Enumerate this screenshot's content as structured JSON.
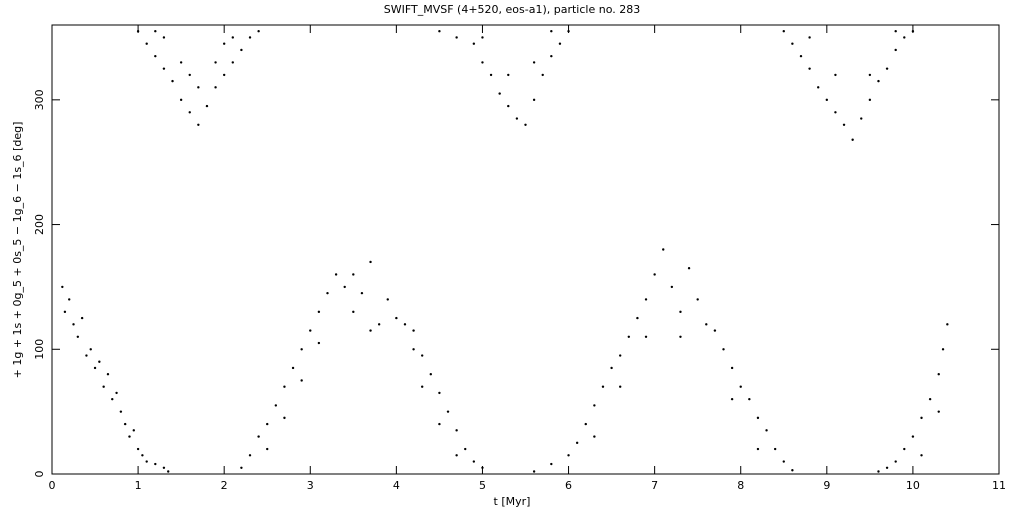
{
  "chart_data": {
    "type": "scatter",
    "title": "SWIFT_MVSF (4+520, eos-a1), particle no. 283",
    "x_label": "t [Myr]",
    "y_label": "+ 1g + 1s + 0g_5 + 0s_5 − 1g_6 − 1s_6 [deg]",
    "color": "#000000",
    "xlim": [
      0,
      11
    ],
    "ylim": [
      0,
      360
    ],
    "xticks": [
      0,
      1,
      2,
      3,
      4,
      5,
      6,
      7,
      8,
      9,
      10,
      11
    ],
    "yticks": [
      0,
      100,
      200,
      300
    ],
    "x": [
      0.12,
      0.15,
      0.2,
      0.25,
      0.3,
      0.35,
      0.4,
      0.45,
      0.5,
      0.55,
      0.6,
      0.65,
      0.7,
      0.75,
      0.8,
      0.85,
      0.9,
      0.95,
      1.0,
      1.05,
      1.1,
      1.2,
      1.3,
      1.35,
      1.0,
      1.1,
      1.2,
      1.3,
      1.4,
      1.5,
      1.6,
      1.7,
      1.8,
      1.9,
      2.0,
      2.1,
      2.2,
      2.3,
      2.4,
      1.3,
      1.5,
      1.7,
      1.9,
      2.1,
      1.2,
      1.6,
      2.0,
      2.2,
      2.3,
      2.4,
      2.5,
      2.6,
      2.7,
      2.8,
      2.9,
      3.0,
      3.1,
      3.2,
      3.3,
      2.5,
      2.7,
      2.9,
      3.1,
      3.4,
      3.5,
      3.6,
      3.7,
      3.8,
      3.9,
      4.0,
      3.5,
      3.7,
      4.1,
      4.2,
      4.3,
      4.4,
      4.5,
      4.6,
      4.7,
      4.8,
      4.9,
      5.0,
      4.3,
      4.5,
      4.7,
      4.2,
      4.5,
      4.7,
      4.9,
      5.0,
      5.1,
      5.2,
      5.3,
      5.4,
      5.5,
      5.6,
      5.7,
      5.8,
      5.9,
      6.0,
      5.0,
      5.3,
      5.6,
      5.8,
      5.6,
      5.8,
      6.0,
      6.1,
      6.2,
      6.3,
      6.4,
      6.5,
      6.6,
      6.7,
      6.8,
      6.9,
      7.0,
      7.1,
      6.3,
      6.6,
      6.9,
      7.2,
      7.3,
      7.4,
      7.5,
      7.6,
      7.3,
      7.7,
      7.8,
      7.9,
      8.0,
      8.1,
      8.2,
      8.3,
      8.4,
      8.5,
      8.6,
      7.9,
      8.2,
      8.5,
      8.6,
      8.7,
      8.8,
      8.9,
      9.0,
      9.1,
      9.2,
      9.3,
      9.4,
      9.5,
      9.6,
      9.7,
      9.8,
      9.9,
      10.0,
      8.8,
      9.1,
      9.5,
      9.8,
      9.6,
      9.7,
      9.8,
      9.9,
      10.0,
      10.1,
      10.2,
      10.3,
      10.35,
      10.4,
      10.1,
      10.3
    ],
    "values": [
      150,
      130,
      140,
      120,
      110,
      125,
      95,
      100,
      85,
      90,
      70,
      80,
      60,
      65,
      50,
      40,
      30,
      35,
      20,
      15,
      10,
      8,
      5,
      2,
      355,
      345,
      335,
      325,
      315,
      300,
      290,
      280,
      295,
      310,
      320,
      330,
      340,
      350,
      355,
      350,
      330,
      310,
      330,
      350,
      355,
      320,
      345,
      5,
      15,
      30,
      40,
      55,
      70,
      85,
      100,
      115,
      130,
      145,
      160,
      20,
      45,
      75,
      105,
      150,
      130,
      145,
      170,
      120,
      140,
      125,
      160,
      115,
      120,
      100,
      95,
      80,
      65,
      50,
      35,
      20,
      10,
      5,
      70,
      40,
      15,
      115,
      355,
      350,
      345,
      330,
      320,
      305,
      295,
      285,
      280,
      300,
      320,
      335,
      345,
      355,
      350,
      320,
      330,
      355,
      2,
      8,
      15,
      25,
      40,
      55,
      70,
      85,
      95,
      110,
      125,
      140,
      160,
      180,
      30,
      70,
      110,
      150,
      130,
      165,
      140,
      120,
      110,
      115,
      100,
      85,
      70,
      60,
      45,
      35,
      20,
      10,
      3,
      60,
      20,
      355,
      345,
      335,
      325,
      310,
      300,
      290,
      280,
      268,
      285,
      300,
      315,
      325,
      340,
      350,
      355,
      350,
      320,
      320,
      355,
      2,
      5,
      10,
      20,
      30,
      45,
      60,
      80,
      100,
      120,
      15,
      50
    ]
  }
}
